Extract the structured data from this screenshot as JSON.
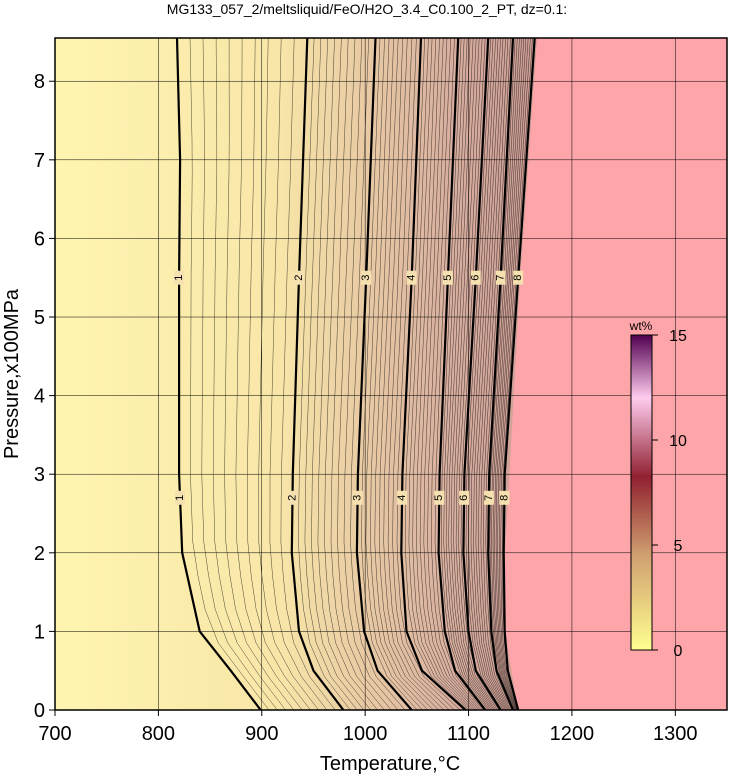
{
  "chart_data": {
    "type": "contour",
    "title": "MG133_057_2/meltsliquid/FeO/H2O_3.4_C0.100_2_PT, dz=0.1:",
    "x_label": "Temperature,°C",
    "y_label": "Pressure,x100MPa",
    "xlim": [
      700,
      1350
    ],
    "ylim": [
      0,
      8.55
    ],
    "xticks": [
      700,
      800,
      900,
      1000,
      1100,
      1200,
      1300
    ],
    "yticks": [
      0,
      1,
      2,
      3,
      4,
      5,
      6,
      7,
      8
    ],
    "grid": true,
    "contours": [
      {
        "level": 1,
        "x": [
          899,
          870,
          840,
          823,
          820,
          820,
          821,
          818
        ],
        "y": [
          0,
          0.5,
          1,
          2,
          3,
          5.5,
          7,
          8.55
        ]
      },
      {
        "level": 2,
        "x": [
          979,
          950,
          936,
          929,
          930,
          936,
          944
        ],
        "y": [
          0,
          0.5,
          1,
          2,
          3,
          5.5,
          8.55
        ]
      },
      {
        "level": 3,
        "x": [
          1045,
          1012,
          999,
          992,
          993,
          1001,
          1010
        ],
        "y": [
          0,
          0.5,
          1,
          2,
          3,
          5.5,
          8.55
        ]
      },
      {
        "level": 4,
        "x": [
          1097,
          1055,
          1040,
          1035,
          1036,
          1045,
          1054
        ],
        "y": [
          0,
          0.5,
          1,
          2,
          3,
          5.5,
          8.55
        ]
      },
      {
        "level": 5,
        "x": [
          1116,
          1087,
          1077,
          1071,
          1072,
          1080,
          1090
        ],
        "y": [
          0,
          0.5,
          1,
          2,
          3,
          5.5,
          8.55
        ]
      },
      {
        "level": 6,
        "x": [
          1131,
          1107,
          1100,
          1095,
          1096,
          1107,
          1119
        ],
        "y": [
          0,
          0.5,
          1,
          2,
          3,
          5.5,
          8.55
        ]
      },
      {
        "level": 7,
        "x": [
          1143,
          1127,
          1122,
          1119,
          1120,
          1131,
          1143
        ],
        "y": [
          0,
          0.5,
          1,
          2,
          3,
          5.5,
          8.55
        ]
      },
      {
        "level": 8,
        "x": [
          1148,
          1138,
          1135,
          1134,
          1135,
          1148,
          1164
        ],
        "y": [
          0,
          0.5,
          1,
          2,
          3,
          5.5,
          8.55
        ]
      }
    ],
    "colorbar": {
      "label": "wt%",
      "lim": [
        0,
        15
      ],
      "ticks": [
        0,
        5,
        10,
        15
      ]
    }
  }
}
